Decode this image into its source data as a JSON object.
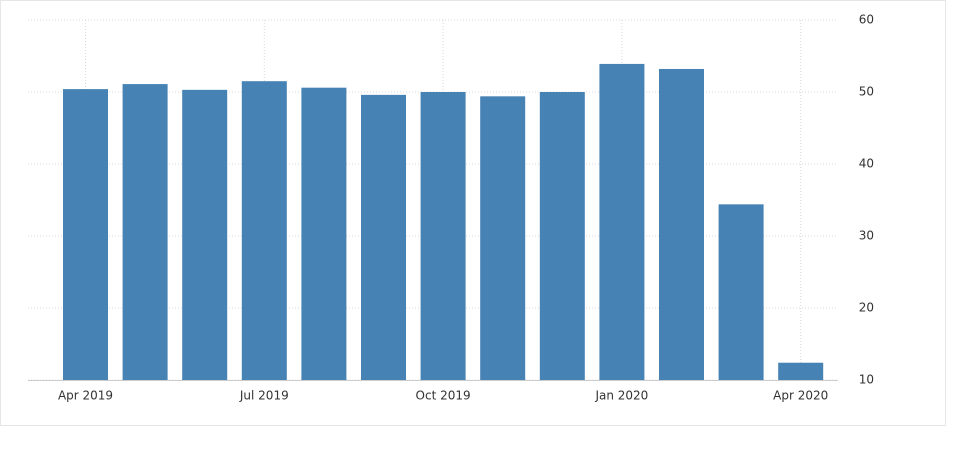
{
  "chart_data": {
    "type": "bar",
    "categories": [
      "Apr 2019",
      null,
      null,
      "Jul 2019",
      null,
      null,
      "Oct 2019",
      null,
      null,
      "Jan 2020",
      null,
      null,
      "Apr 2020"
    ],
    "values": [
      50.4,
      51.1,
      50.3,
      51.5,
      50.6,
      49.6,
      50.0,
      49.4,
      50.0,
      53.9,
      53.2,
      34.4,
      12.4
    ],
    "color": "#4682b4",
    "ylim": [
      10,
      60
    ],
    "yticks": [
      10,
      20,
      30,
      40,
      50,
      60
    ],
    "grid": true,
    "xgrid": true,
    "y_axis_side": "right"
  }
}
